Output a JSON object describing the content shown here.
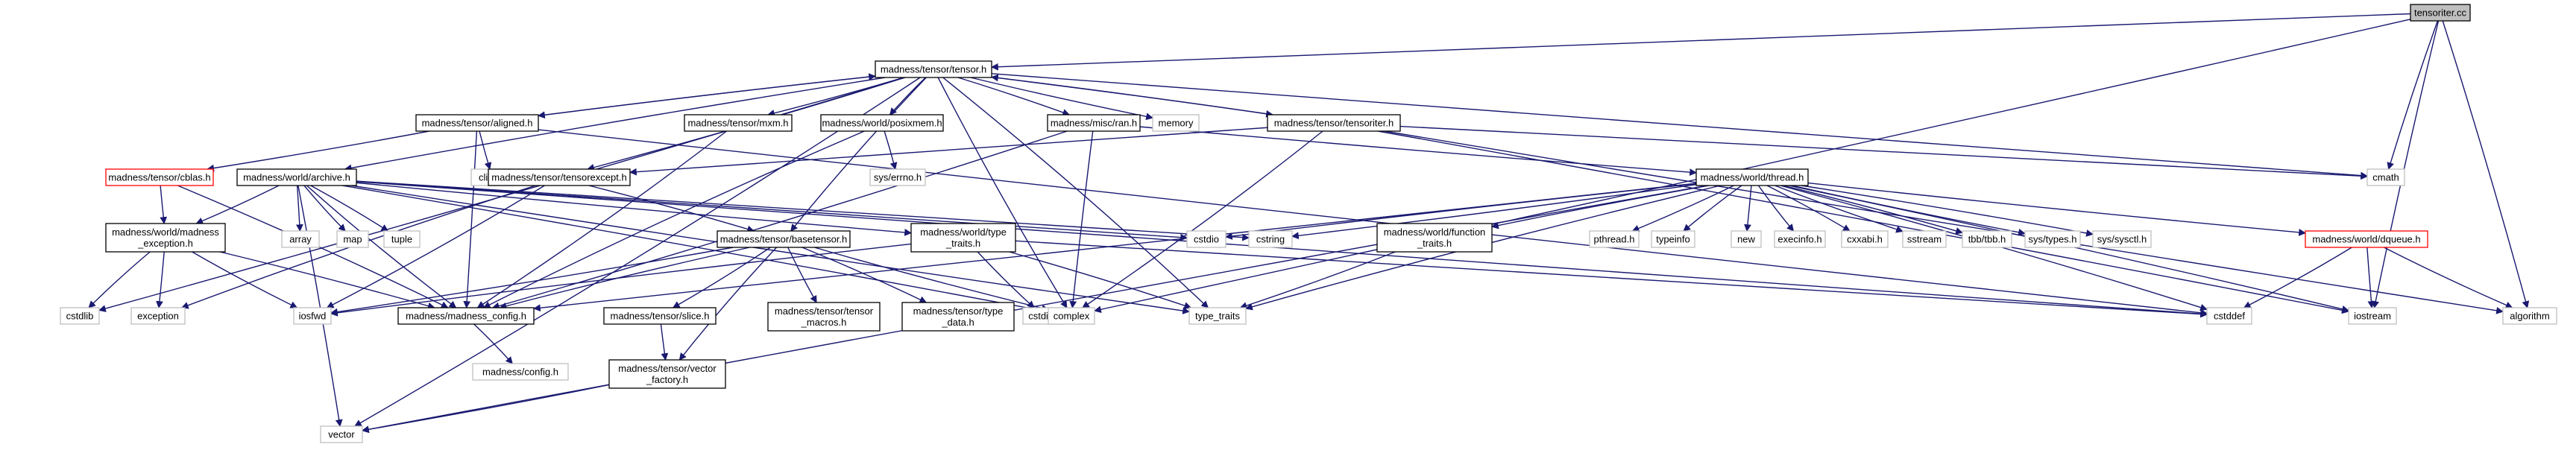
{
  "colors": {
    "edge": "#191970",
    "box_border_normal": "#000000",
    "box_border_external": "#bfbfbf",
    "box_border_truncated": "#ff0000",
    "box_fill_root": "#bfbfbf",
    "box_fill_normal": "#ffffff",
    "text": "#000000"
  },
  "nodes": [
    {
      "id": "tensoriter_cc",
      "lines": [
        "tensoriter.cc"
      ],
      "kind": "root"
    },
    {
      "id": "tensor_h",
      "lines": [
        "madness/tensor/tensor.h"
      ],
      "kind": "normal"
    },
    {
      "id": "cmath",
      "lines": [
        "cmath"
      ],
      "kind": "external"
    },
    {
      "id": "aligned_h",
      "lines": [
        "madness/tensor/aligned.h"
      ],
      "kind": "normal"
    },
    {
      "id": "mxm_h",
      "lines": [
        "madness/tensor/mxm.h"
      ],
      "kind": "normal"
    },
    {
      "id": "posixmem_h",
      "lines": [
        "madness/world/posixmem.h"
      ],
      "kind": "normal"
    },
    {
      "id": "ran_h",
      "lines": [
        "madness/misc/ran.h"
      ],
      "kind": "normal"
    },
    {
      "id": "memory",
      "lines": [
        "memory"
      ],
      "kind": "external"
    },
    {
      "id": "tensoriter_h",
      "lines": [
        "madness/tensor/tensoriter.h"
      ],
      "kind": "normal"
    },
    {
      "id": "climits",
      "lines": [
        "climits"
      ],
      "kind": "external"
    },
    {
      "id": "errno_h",
      "lines": [
        "sys/errno.h"
      ],
      "kind": "external"
    },
    {
      "id": "cblas_h",
      "lines": [
        "madness/tensor/cblas.h"
      ],
      "kind": "truncated"
    },
    {
      "id": "archive_h",
      "lines": [
        "madness/world/archive.h"
      ],
      "kind": "normal"
    },
    {
      "id": "tensorexcept_h",
      "lines": [
        "madness/tensor/tensorexcept.h"
      ],
      "kind": "normal"
    },
    {
      "id": "thread_h",
      "lines": [
        "madness/world/thread.h"
      ],
      "kind": "normal"
    },
    {
      "id": "cstdio",
      "lines": [
        "cstdio"
      ],
      "kind": "external"
    },
    {
      "id": "cstring",
      "lines": [
        "cstring"
      ],
      "kind": "external"
    },
    {
      "id": "madness_exception_h",
      "lines": [
        "madness/world/madness",
        "_exception.h"
      ],
      "kind": "normal"
    },
    {
      "id": "array",
      "lines": [
        "array"
      ],
      "kind": "external"
    },
    {
      "id": "map",
      "lines": [
        "map"
      ],
      "kind": "external"
    },
    {
      "id": "tuple",
      "lines": [
        "tuple"
      ],
      "kind": "external"
    },
    {
      "id": "basetensor_h",
      "lines": [
        "madness/tensor/basetensor.h"
      ],
      "kind": "normal"
    },
    {
      "id": "type_traits_h",
      "lines": [
        "madness/world/type",
        "_traits.h"
      ],
      "kind": "normal"
    },
    {
      "id": "function_traits_h",
      "lines": [
        "madness/world/function",
        "_traits.h"
      ],
      "kind": "normal"
    },
    {
      "id": "pthread_h",
      "lines": [
        "pthread.h"
      ],
      "kind": "external"
    },
    {
      "id": "typeinfo",
      "lines": [
        "typeinfo"
      ],
      "kind": "external"
    },
    {
      "id": "new",
      "lines": [
        "new"
      ],
      "kind": "external"
    },
    {
      "id": "execinfo_h",
      "lines": [
        "execinfo.h"
      ],
      "kind": "external"
    },
    {
      "id": "cxxabi_h",
      "lines": [
        "cxxabi.h"
      ],
      "kind": "external"
    },
    {
      "id": "sstream",
      "lines": [
        "sstream"
      ],
      "kind": "external"
    },
    {
      "id": "tbb_h",
      "lines": [
        "tbb/tbb.h"
      ],
      "kind": "external"
    },
    {
      "id": "sys_types_h",
      "lines": [
        "sys/types.h"
      ],
      "kind": "external"
    },
    {
      "id": "sys_sysctl_h",
      "lines": [
        "sys/sysctl.h"
      ],
      "kind": "external"
    },
    {
      "id": "dqueue_h",
      "lines": [
        "madness/world/dqueue.h"
      ],
      "kind": "truncated"
    },
    {
      "id": "cstdlib",
      "lines": [
        "cstdlib"
      ],
      "kind": "external"
    },
    {
      "id": "exception",
      "lines": [
        "exception"
      ],
      "kind": "external"
    },
    {
      "id": "iosfwd",
      "lines": [
        "iosfwd"
      ],
      "kind": "external"
    },
    {
      "id": "madness_config_h",
      "lines": [
        "madness/madness_config.h"
      ],
      "kind": "normal"
    },
    {
      "id": "slice_h",
      "lines": [
        "madness/tensor/slice.h"
      ],
      "kind": "normal"
    },
    {
      "id": "tensor_macros_h",
      "lines": [
        "madness/tensor/tensor",
        "_macros.h"
      ],
      "kind": "normal"
    },
    {
      "id": "type_data_h",
      "lines": [
        "madness/tensor/type",
        "_data.h"
      ],
      "kind": "normal"
    },
    {
      "id": "cstdint",
      "lines": [
        "cstdint"
      ],
      "kind": "external"
    },
    {
      "id": "complex",
      "lines": [
        "complex"
      ],
      "kind": "external"
    },
    {
      "id": "type_traits",
      "lines": [
        "type_traits"
      ],
      "kind": "external"
    },
    {
      "id": "cstddef",
      "lines": [
        "cstddef"
      ],
      "kind": "external"
    },
    {
      "id": "iostream",
      "lines": [
        "iostream"
      ],
      "kind": "external"
    },
    {
      "id": "algorithm",
      "lines": [
        "algorithm"
      ],
      "kind": "external"
    },
    {
      "id": "config_h",
      "lines": [
        "madness/config.h"
      ],
      "kind": "external"
    },
    {
      "id": "vector_factory_h",
      "lines": [
        "madness/tensor/vector",
        "_factory.h"
      ],
      "kind": "normal"
    },
    {
      "id": "vector",
      "lines": [
        "vector"
      ],
      "kind": "external"
    }
  ],
  "edges": [
    [
      "tensoriter_cc",
      "tensor_h"
    ],
    [
      "tensoriter_cc",
      "cmath"
    ],
    [
      "tensoriter_cc",
      "complex"
    ],
    [
      "tensoriter_cc",
      "iostream"
    ],
    [
      "tensoriter_cc",
      "algorithm"
    ],
    [
      "tensor_h",
      "aligned_h"
    ],
    [
      "tensor_h",
      "mxm_h"
    ],
    [
      "tensor_h",
      "posixmem_h"
    ],
    [
      "tensor_h",
      "ran_h"
    ],
    [
      "tensor_h",
      "memory"
    ],
    [
      "tensor_h",
      "tensoriter_h"
    ],
    [
      "tensor_h",
      "archive_h"
    ],
    [
      "tensor_h",
      "tensorexcept_h"
    ],
    [
      "tensor_h",
      "basetensor_h"
    ],
    [
      "tensor_h",
      "cstdlib"
    ],
    [
      "tensor_h",
      "complex"
    ],
    [
      "tensor_h",
      "vector"
    ],
    [
      "tensor_h",
      "cmath"
    ],
    [
      "tensor_h",
      "type_traits"
    ],
    [
      "aligned_h",
      "tensor_h"
    ],
    [
      "aligned_h",
      "madness_config_h"
    ],
    [
      "aligned_h",
      "climits"
    ],
    [
      "aligned_h",
      "cblas_h"
    ],
    [
      "aligned_h",
      "cstddef"
    ],
    [
      "mxm_h",
      "madness_config_h"
    ],
    [
      "posixmem_h",
      "madness_config_h"
    ],
    [
      "posixmem_h",
      "errno_h"
    ],
    [
      "ran_h",
      "complex"
    ],
    [
      "ran_h",
      "madness_config_h"
    ],
    [
      "ran_h",
      "thread_h"
    ],
    [
      "tensoriter_h",
      "tensor_h"
    ],
    [
      "tensoriter_h",
      "tensorexcept_h"
    ],
    [
      "tensoriter_h",
      "complex"
    ],
    [
      "tensoriter_h",
      "cmath"
    ],
    [
      "tensoriter_h",
      "iostream"
    ],
    [
      "tensoriter_h",
      "algorithm"
    ],
    [
      "cblas_h",
      "madness_config_h"
    ],
    [
      "cblas_h",
      "madness_exception_h"
    ],
    [
      "archive_h",
      "cstdio"
    ],
    [
      "archive_h",
      "cstring"
    ],
    [
      "archive_h",
      "array"
    ],
    [
      "archive_h",
      "map"
    ],
    [
      "archive_h",
      "tuple"
    ],
    [
      "archive_h",
      "madness_config_h"
    ],
    [
      "archive_h",
      "madness_exception_h"
    ],
    [
      "archive_h",
      "type_traits_h"
    ],
    [
      "archive_h",
      "complex"
    ],
    [
      "archive_h",
      "type_traits"
    ],
    [
      "archive_h",
      "vector"
    ],
    [
      "archive_h",
      "cstddef"
    ],
    [
      "tensorexcept_h",
      "basetensor_h"
    ],
    [
      "tensorexcept_h",
      "exception"
    ],
    [
      "tensorexcept_h",
      "iosfwd"
    ],
    [
      "thread_h",
      "cstdio"
    ],
    [
      "thread_h",
      "cstring"
    ],
    [
      "thread_h",
      "function_traits_h"
    ],
    [
      "thread_h",
      "pthread_h"
    ],
    [
      "thread_h",
      "typeinfo"
    ],
    [
      "thread_h",
      "new"
    ],
    [
      "thread_h",
      "execinfo_h"
    ],
    [
      "thread_h",
      "cxxabi_h"
    ],
    [
      "thread_h",
      "sstream"
    ],
    [
      "thread_h",
      "tbb_h"
    ],
    [
      "thread_h",
      "sys_types_h"
    ],
    [
      "thread_h",
      "sys_sysctl_h"
    ],
    [
      "thread_h",
      "dqueue_h"
    ],
    [
      "thread_h",
      "madness_config_h"
    ],
    [
      "thread_h",
      "type_traits"
    ],
    [
      "thread_h",
      "cstddef"
    ],
    [
      "thread_h",
      "vector"
    ],
    [
      "thread_h",
      "iostream"
    ],
    [
      "madness_exception_h",
      "cstdlib"
    ],
    [
      "madness_exception_h",
      "exception"
    ],
    [
      "madness_exception_h",
      "iosfwd"
    ],
    [
      "madness_exception_h",
      "madness_config_h"
    ],
    [
      "basetensor_h",
      "madness_config_h"
    ],
    [
      "basetensor_h",
      "slice_h"
    ],
    [
      "basetensor_h",
      "tensor_macros_h"
    ],
    [
      "basetensor_h",
      "type_data_h"
    ],
    [
      "basetensor_h",
      "complex"
    ],
    [
      "basetensor_h",
      "iosfwd"
    ],
    [
      "basetensor_h",
      "vector_factory_h"
    ],
    [
      "type_traits_h",
      "type_traits"
    ],
    [
      "type_traits_h",
      "cstdint"
    ],
    [
      "type_traits_h",
      "cstddef"
    ],
    [
      "type_traits_h",
      "iosfwd"
    ],
    [
      "function_traits_h",
      "type_traits"
    ],
    [
      "dqueue_h",
      "iostream"
    ],
    [
      "dqueue_h",
      "cstddef"
    ],
    [
      "dqueue_h",
      "algorithm"
    ],
    [
      "madness_config_h",
      "config_h"
    ],
    [
      "slice_h",
      "vector_factory_h"
    ],
    [
      "vector_factory_h",
      "vector"
    ]
  ]
}
